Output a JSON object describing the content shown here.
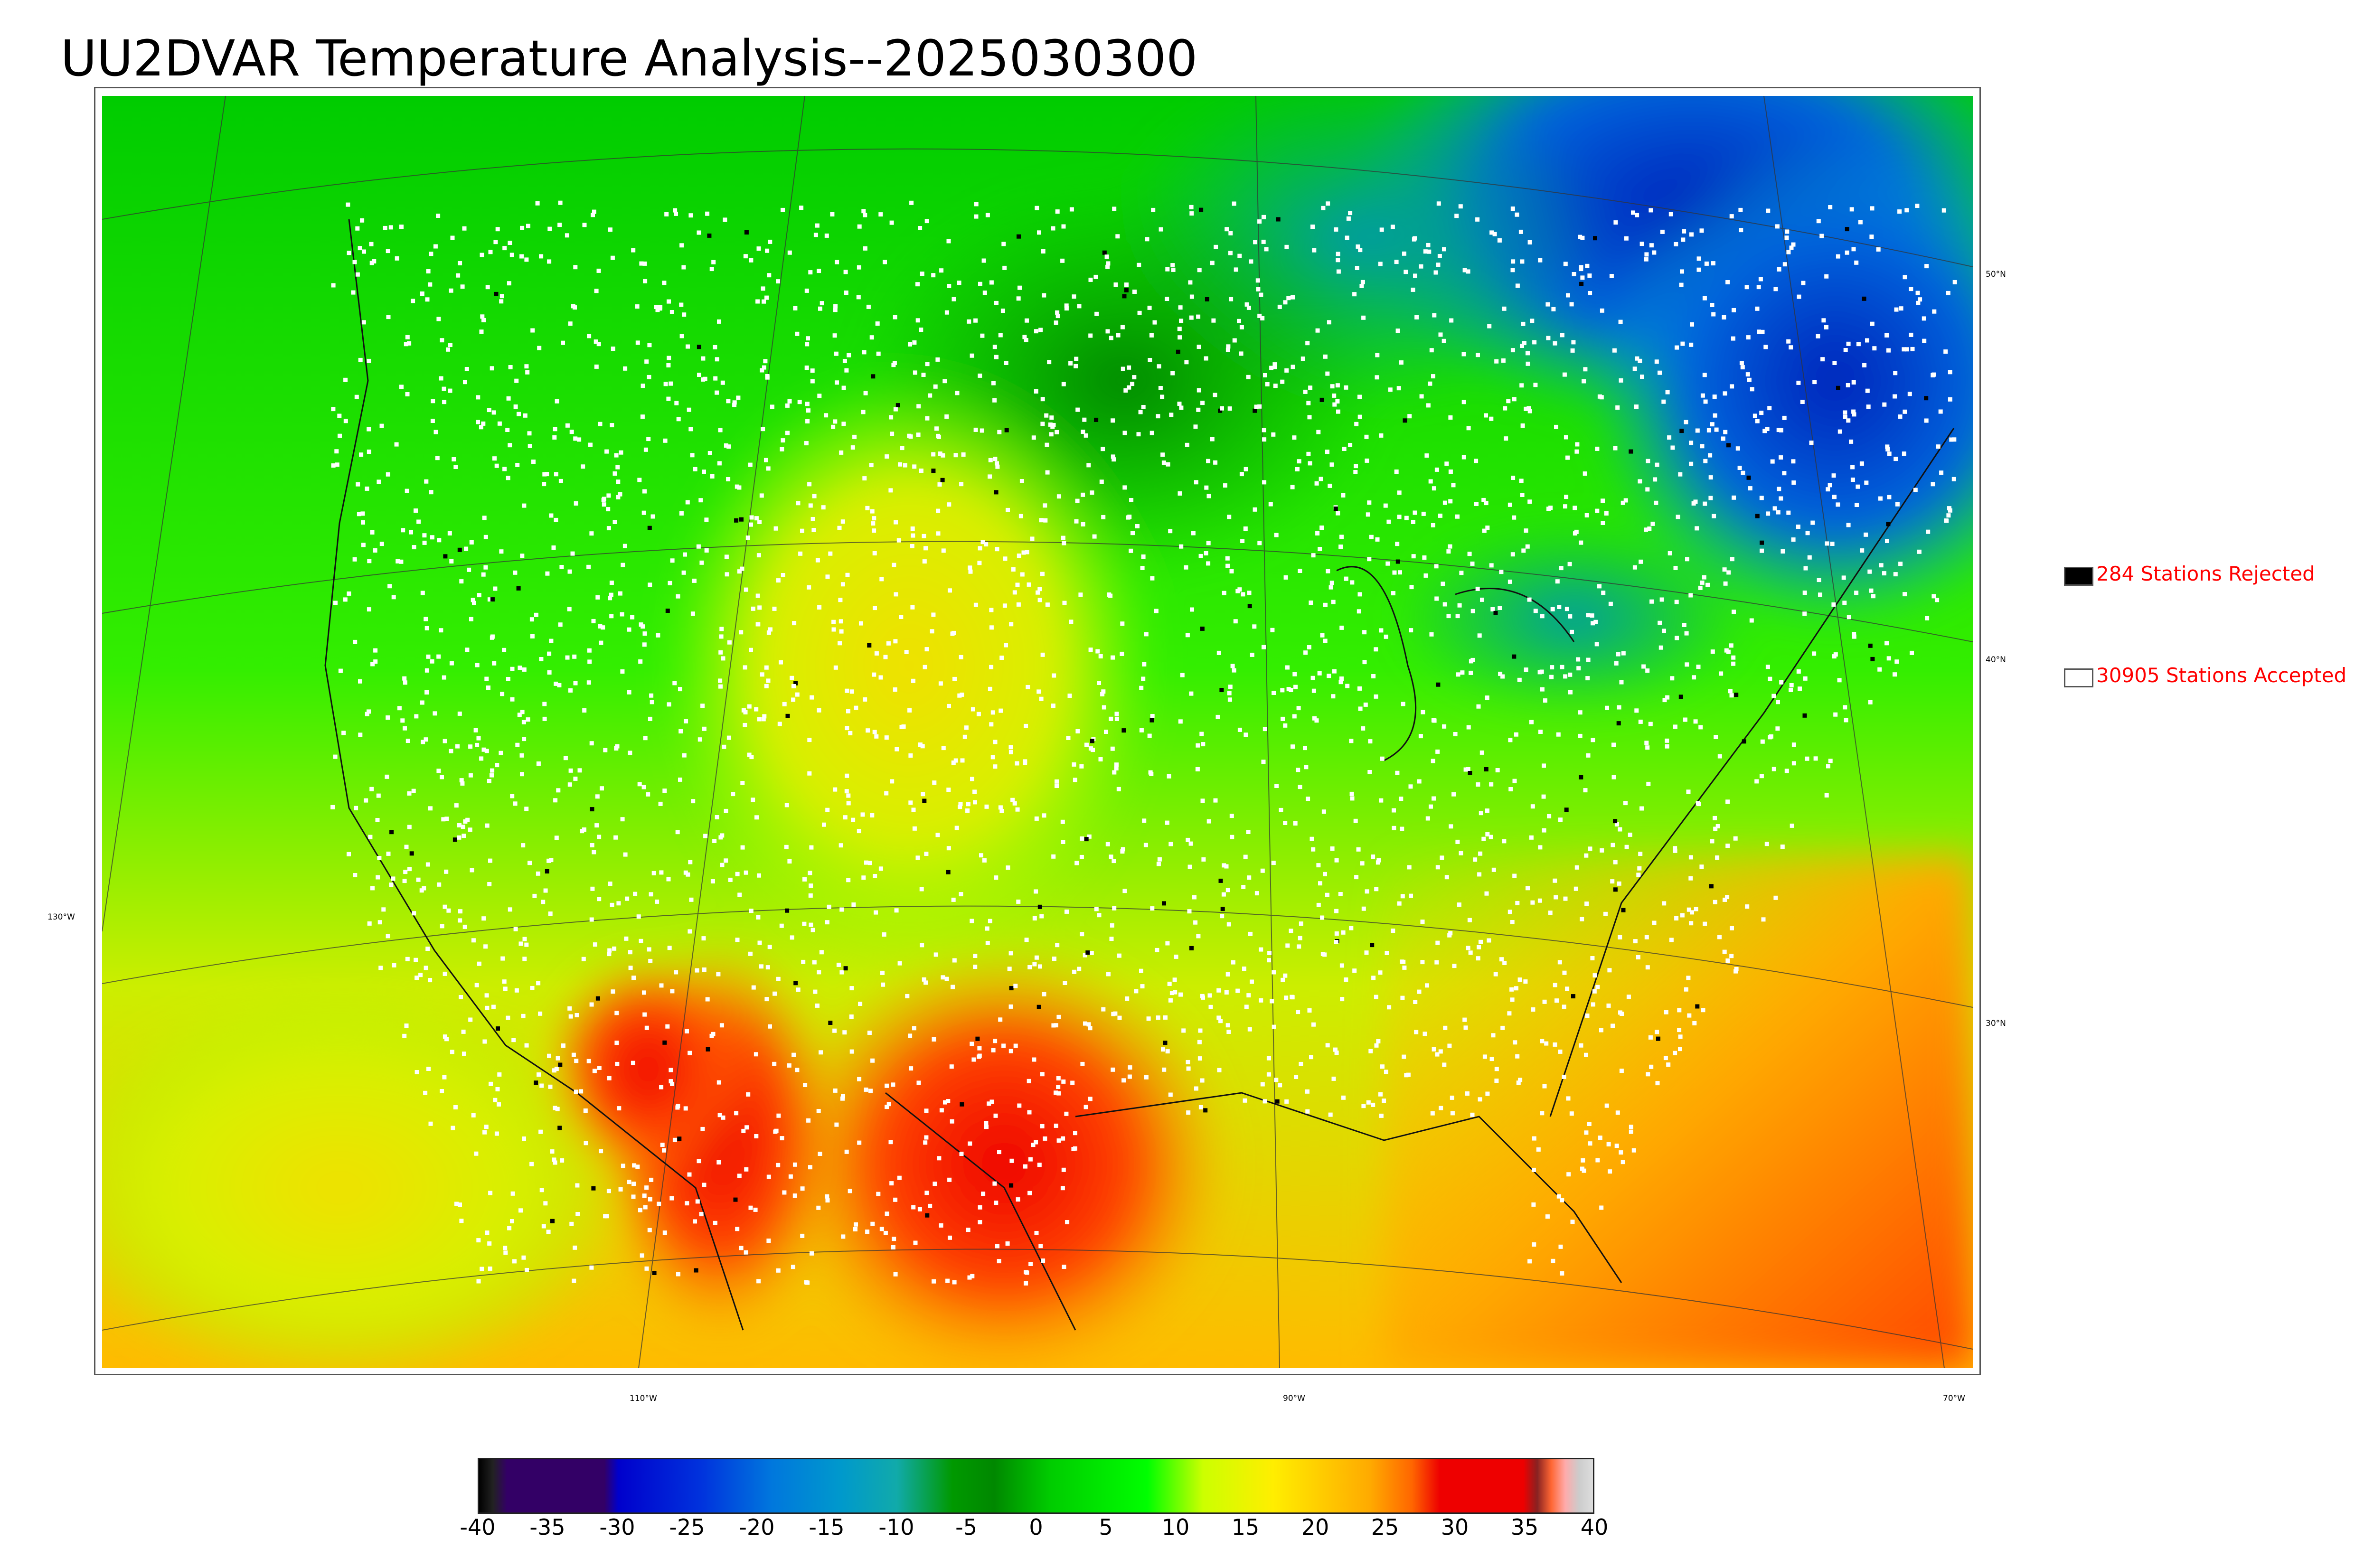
{
  "title": "UU2DVAR Temperature Analysis--2025030300",
  "map": {
    "lat_labels": [
      "50°N",
      "40°N",
      "30°N"
    ],
    "lon_labels": [
      "130°W",
      "110°W",
      "90°W",
      "70°W"
    ],
    "colormap_note_colors": [
      "#00cc00",
      "#d8f000",
      "#ff9900",
      "#ee0000",
      "#0033cc",
      "#0099cc"
    ]
  },
  "legend": {
    "rejected": {
      "label": "284 Stations Rejected",
      "swatch_color": "#000000"
    },
    "accepted": {
      "label": "30905 Stations Accepted",
      "swatch_color": "#ffffff"
    }
  },
  "colorbar": {
    "ticks": [
      "-40",
      "-35",
      "-30",
      "-25",
      "-20",
      "-15",
      "-10",
      "-5",
      "0",
      "5",
      "10",
      "15",
      "20",
      "25",
      "30",
      "35",
      "40"
    ],
    "min": -40,
    "max": 40,
    "stops": [
      [
        "#000000",
        -40
      ],
      [
        "#222222",
        -39
      ],
      [
        "#330066",
        -38
      ],
      [
        "#330066",
        -31
      ],
      [
        "#0000cc",
        -30
      ],
      [
        "#0033dd",
        -24
      ],
      [
        "#0077dd",
        -19
      ],
      [
        "#0099cc",
        -14
      ],
      [
        "#11aaaa",
        -10
      ],
      [
        "#009900",
        -6
      ],
      [
        "#008800",
        -3
      ],
      [
        "#00cc00",
        1
      ],
      [
        "#00ff00",
        8
      ],
      [
        "#ccff00",
        12
      ],
      [
        "#ffee00",
        17
      ],
      [
        "#ffaa00",
        24
      ],
      [
        "#ff6600",
        27
      ],
      [
        "#ee0000",
        29
      ],
      [
        "#ee0000",
        35
      ],
      [
        "#882222",
        36
      ],
      [
        "#ff6633",
        37
      ],
      [
        "#ffaaaa",
        38
      ],
      [
        "#cccccc",
        39
      ],
      [
        "#dddddd",
        40
      ]
    ]
  }
}
